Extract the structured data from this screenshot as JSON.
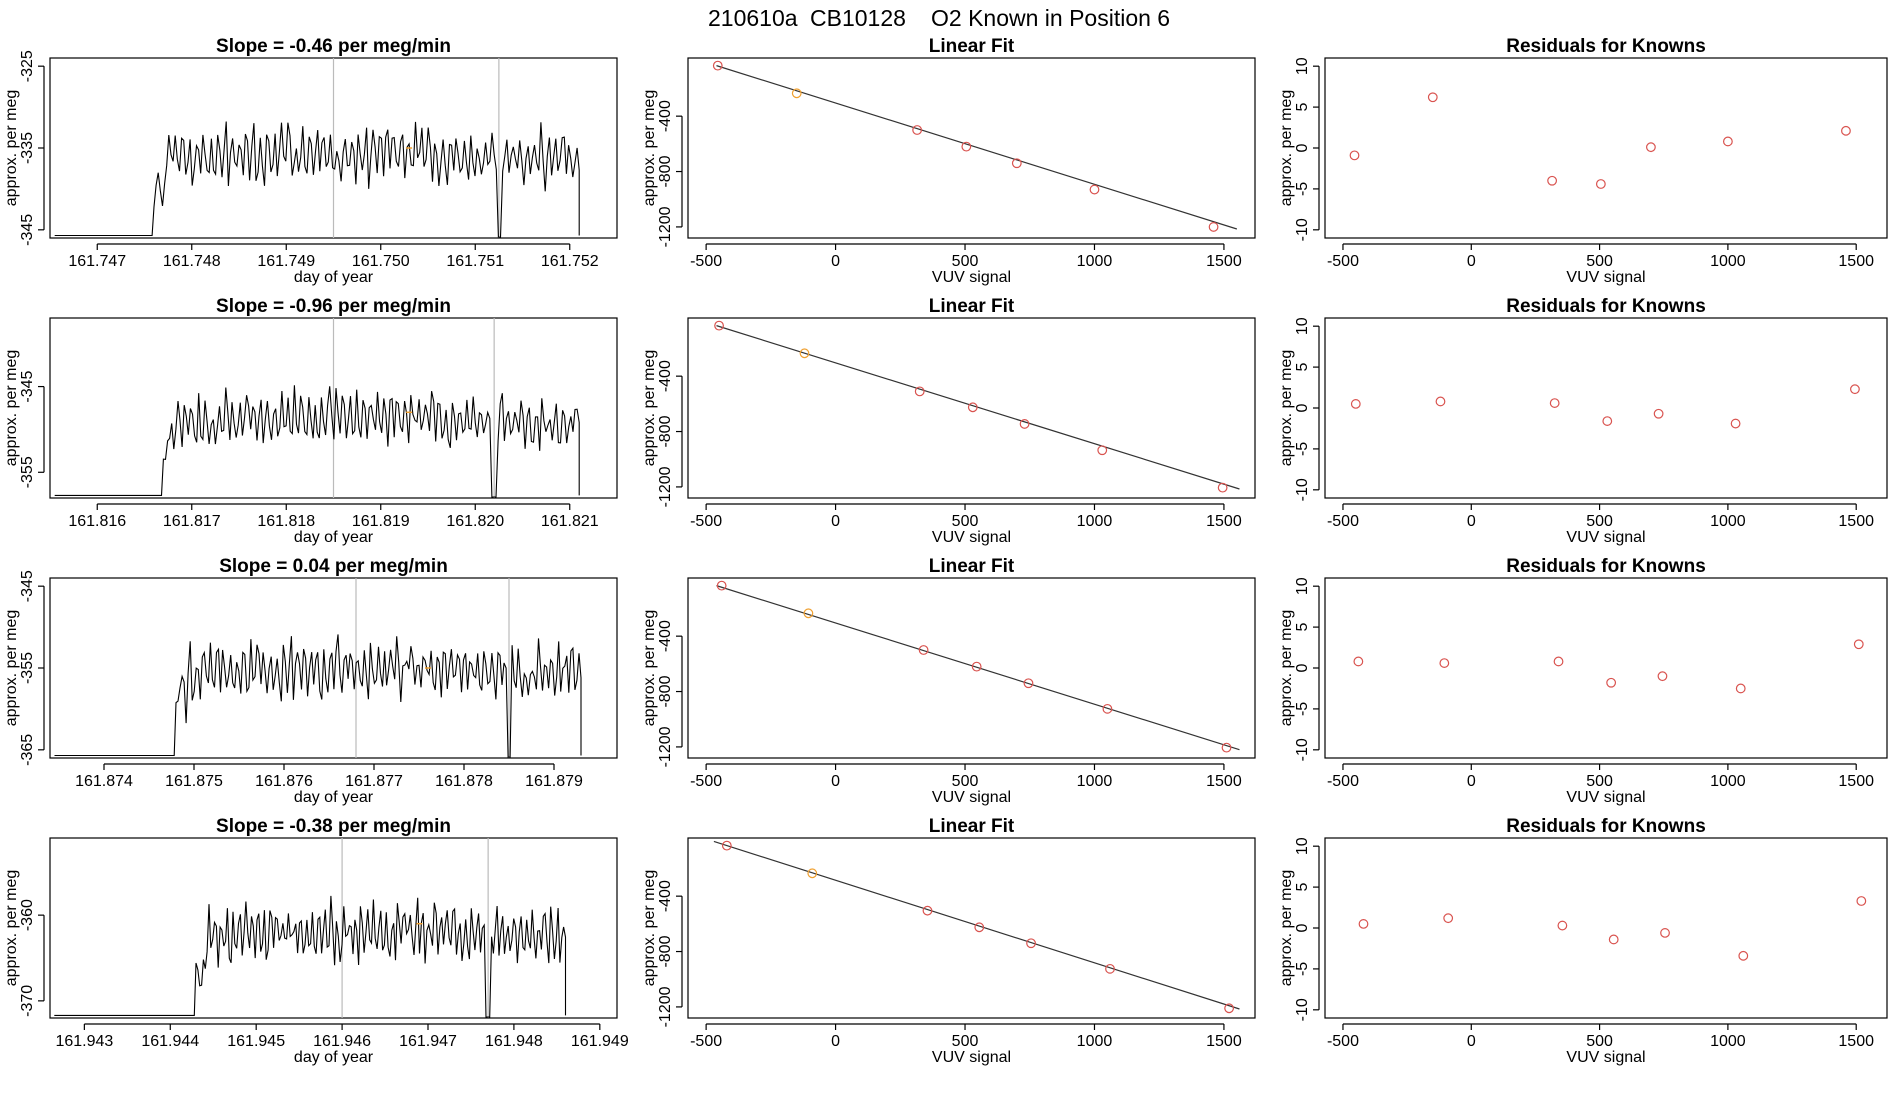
{
  "figure": {
    "title_run": "210610a",
    "title_id": "CB10128",
    "title_desc": "O2 Known in Position  6"
  },
  "colors": {
    "series_line": "#000000",
    "marker_red": "#d9534f",
    "marker_orange": "#f0a030",
    "vertical_lines": "#bbbbbb",
    "fit_line": "#333333"
  },
  "chart_data": [
    {
      "row": 1,
      "timeseries": {
        "type": "line",
        "title": "Slope =  -0.46  per meg/min",
        "xlabel": "day of year",
        "ylabel": "approx. per meg",
        "xlim": [
          161.7465,
          161.7525
        ],
        "ylim": [
          -346,
          -324
        ],
        "xticks": [
          161.747,
          161.748,
          161.749,
          161.75,
          161.751,
          161.752
        ],
        "xtick_labels": [
          "161.747",
          "161.748",
          "161.749",
          "161.750",
          "161.751",
          "161.752"
        ],
        "yticks": [
          -325,
          -335,
          -345
        ],
        "ytick_labels": [
          "-325",
          "-335",
          "-345"
        ],
        "start": 161.7476,
        "end": 161.7521,
        "base": -336.5,
        "trend": 0.8,
        "amp": 3.2,
        "seed": 11,
        "vlines": [
          161.7495,
          161.75125
        ],
        "marker": {
          "x": 161.7503,
          "y": -335
        }
      },
      "fit": {
        "type": "scatter",
        "title": "Linear Fit",
        "xlabel": "VUV signal",
        "ylabel": "approx. per meg",
        "xlim": [
          -570,
          1620
        ],
        "ylim": [
          -1280,
          20
        ],
        "xticks": [
          -500,
          0,
          500,
          1000,
          1500
        ],
        "xtick_labels": [
          "-500",
          "0",
          "500",
          "1000",
          "1500"
        ],
        "yticks": [
          -400,
          -800,
          -1200
        ],
        "ytick_labels": [
          "-400",
          "-800",
          "-1200"
        ],
        "line": {
          "x0": -460,
          "y0": -35,
          "x1": 1550,
          "y1": -1215
        },
        "points": [
          {
            "x": -455,
            "y": -35,
            "color": "red"
          },
          {
            "x": -150,
            "y": -235,
            "color": "orange"
          },
          {
            "x": 315,
            "y": -500,
            "color": "red"
          },
          {
            "x": 505,
            "y": -620,
            "color": "red"
          },
          {
            "x": 700,
            "y": -740,
            "color": "red"
          },
          {
            "x": 1000,
            "y": -930,
            "color": "red"
          },
          {
            "x": 1460,
            "y": -1200,
            "color": "red"
          }
        ]
      },
      "residuals": {
        "type": "scatter",
        "title": "Residuals for Knowns",
        "xlabel": "VUV signal",
        "ylabel": "approx. per meg",
        "xlim": [
          -570,
          1620
        ],
        "ylim": [
          -11,
          11
        ],
        "xticks": [
          -500,
          0,
          500,
          1000,
          1500
        ],
        "xtick_labels": [
          "-500",
          "0",
          "500",
          "1000",
          "1500"
        ],
        "yticks": [
          10,
          5,
          0,
          -5,
          -10
        ],
        "ytick_labels": [
          "10",
          "5",
          "0",
          "-5",
          "-10"
        ],
        "points": [
          {
            "x": -455,
            "y": -0.9
          },
          {
            "x": -150,
            "y": 6.2
          },
          {
            "x": 315,
            "y": -4.0
          },
          {
            "x": 505,
            "y": -4.4
          },
          {
            "x": 700,
            "y": 0.1
          },
          {
            "x": 1000,
            "y": 0.8
          },
          {
            "x": 1460,
            "y": 2.1
          }
        ]
      }
    },
    {
      "row": 2,
      "timeseries": {
        "type": "line",
        "title": "Slope =  -0.96  per meg/min",
        "xlabel": "day of year",
        "ylabel": "approx. per meg",
        "xlim": [
          161.8155,
          161.8215
        ],
        "ylim": [
          -358,
          -337
        ],
        "xticks": [
          161.816,
          161.817,
          161.818,
          161.819,
          161.82,
          161.821
        ],
        "xtick_labels": [
          "161.816",
          "161.817",
          "161.818",
          "161.819",
          "161.820",
          "161.821"
        ],
        "yticks": [
          -345,
          -355
        ],
        "ytick_labels": [
          "-345",
          "-355"
        ],
        "start": 161.8167,
        "end": 161.8211,
        "base": -349.5,
        "trend": 1.0,
        "amp": 2.8,
        "seed": 23,
        "vlines": [
          161.8185,
          161.8202
        ],
        "marker": {
          "x": 161.8193,
          "y": -348
        }
      },
      "fit": {
        "type": "scatter",
        "title": "Linear Fit",
        "xlabel": "VUV signal",
        "ylabel": "approx. per meg",
        "xlim": [
          -570,
          1620
        ],
        "ylim": [
          -1280,
          20
        ],
        "xticks": [
          -500,
          0,
          500,
          1000,
          1500
        ],
        "xtick_labels": [
          "-500",
          "0",
          "500",
          "1000",
          "1500"
        ],
        "yticks": [
          -400,
          -800,
          -1200
        ],
        "ytick_labels": [
          "-400",
          "-800",
          "-1200"
        ],
        "line": {
          "x0": -460,
          "y0": -35,
          "x1": 1560,
          "y1": -1215
        },
        "points": [
          {
            "x": -450,
            "y": -35,
            "color": "red"
          },
          {
            "x": -120,
            "y": -235,
            "color": "orange"
          },
          {
            "x": 325,
            "y": -510,
            "color": "red"
          },
          {
            "x": 530,
            "y": -625,
            "color": "red"
          },
          {
            "x": 730,
            "y": -745,
            "color": "red"
          },
          {
            "x": 1030,
            "y": -935,
            "color": "red"
          },
          {
            "x": 1495,
            "y": -1205,
            "color": "red"
          }
        ]
      },
      "residuals": {
        "type": "scatter",
        "title": "Residuals for Knowns",
        "xlabel": "VUV signal",
        "ylabel": "approx. per meg",
        "xlim": [
          -570,
          1620
        ],
        "ylim": [
          -11,
          11
        ],
        "xticks": [
          -500,
          0,
          500,
          1000,
          1500
        ],
        "xtick_labels": [
          "-500",
          "0",
          "500",
          "1000",
          "1500"
        ],
        "yticks": [
          10,
          5,
          0,
          -5,
          -10
        ],
        "ytick_labels": [
          "10",
          "5",
          "0",
          "-5",
          "-10"
        ],
        "points": [
          {
            "x": -450,
            "y": 0.5
          },
          {
            "x": -120,
            "y": 0.8
          },
          {
            "x": 325,
            "y": 0.6
          },
          {
            "x": 530,
            "y": -1.6
          },
          {
            "x": 730,
            "y": -0.7
          },
          {
            "x": 1030,
            "y": -1.9
          },
          {
            "x": 1495,
            "y": 2.3
          }
        ]
      }
    },
    {
      "row": 3,
      "timeseries": {
        "type": "line",
        "title": "Slope =  0.04  per meg/min",
        "xlabel": "day of year",
        "ylabel": "approx. per meg",
        "xlim": [
          161.8734,
          161.8797
        ],
        "ylim": [
          -366,
          -344
        ],
        "xticks": [
          161.874,
          161.875,
          161.876,
          161.877,
          161.878,
          161.879
        ],
        "xtick_labels": [
          "161.874",
          "161.875",
          "161.876",
          "161.877",
          "161.878",
          "161.879"
        ],
        "yticks": [
          -345,
          -355,
          -365
        ],
        "ytick_labels": [
          "-345",
          "-355",
          "-365"
        ],
        "start": 161.8748,
        "end": 161.8793,
        "base": -355.5,
        "trend": 0.4,
        "amp": 3.2,
        "seed": 37,
        "vlines": [
          161.8768,
          161.8785
        ],
        "marker": {
          "x": 161.8776,
          "y": -355
        }
      },
      "fit": {
        "type": "scatter",
        "title": "Linear Fit",
        "xlabel": "VUV signal",
        "ylabel": "approx. per meg",
        "xlim": [
          -570,
          1620
        ],
        "ylim": [
          -1280,
          20
        ],
        "xticks": [
          -500,
          0,
          500,
          1000,
          1500
        ],
        "xtick_labels": [
          "-500",
          "0",
          "500",
          "1000",
          "1500"
        ],
        "yticks": [
          -400,
          -800,
          -1200
        ],
        "ytick_labels": [
          "-400",
          "-800",
          "-1200"
        ],
        "line": {
          "x0": -460,
          "y0": -35,
          "x1": 1560,
          "y1": -1220
        },
        "points": [
          {
            "x": -440,
            "y": -35,
            "color": "red"
          },
          {
            "x": -105,
            "y": -235,
            "color": "orange"
          },
          {
            "x": 340,
            "y": -500,
            "color": "red"
          },
          {
            "x": 545,
            "y": -620,
            "color": "red"
          },
          {
            "x": 745,
            "y": -740,
            "color": "red"
          },
          {
            "x": 1050,
            "y": -925,
            "color": "red"
          },
          {
            "x": 1510,
            "y": -1205,
            "color": "red"
          }
        ]
      },
      "residuals": {
        "type": "scatter",
        "title": "Residuals for Knowns",
        "xlabel": "VUV signal",
        "ylabel": "approx. per meg",
        "xlim": [
          -570,
          1620
        ],
        "ylim": [
          -11,
          11
        ],
        "xticks": [
          -500,
          0,
          500,
          1000,
          1500
        ],
        "xtick_labels": [
          "-500",
          "0",
          "500",
          "1000",
          "1500"
        ],
        "yticks": [
          10,
          5,
          0,
          -5,
          -10
        ],
        "ytick_labels": [
          "10",
          "5",
          "0",
          "-5",
          "-10"
        ],
        "points": [
          {
            "x": -440,
            "y": 0.8
          },
          {
            "x": -105,
            "y": 0.6
          },
          {
            "x": 340,
            "y": 0.8
          },
          {
            "x": 545,
            "y": -1.8
          },
          {
            "x": 745,
            "y": -1.0
          },
          {
            "x": 1050,
            "y": -2.5
          },
          {
            "x": 1510,
            "y": 2.9
          }
        ]
      }
    },
    {
      "row": 4,
      "timeseries": {
        "type": "line",
        "title": "Slope =  -0.38  per meg/min",
        "xlabel": "day of year",
        "ylabel": "approx. per meg",
        "xlim": [
          161.9426,
          161.9492
        ],
        "ylim": [
          -372,
          -351
        ],
        "xticks": [
          161.943,
          161.944,
          161.945,
          161.946,
          161.947,
          161.948,
          161.949
        ],
        "xtick_labels": [
          "161.943",
          "161.944",
          "161.945",
          "161.946",
          "161.947",
          "161.948",
          "161.949"
        ],
        "yticks": [
          -360,
          -370
        ],
        "ytick_labels": [
          "-360",
          "-370"
        ],
        "start": 161.9443,
        "end": 161.9486,
        "base": -362.5,
        "trend": 0.6,
        "amp": 3.0,
        "seed": 53,
        "vlines": [
          161.946,
          161.9477
        ],
        "marker": {
          "x": 161.9469,
          "y": -361
        }
      },
      "fit": {
        "type": "scatter",
        "title": "Linear Fit",
        "xlabel": "VUV signal",
        "ylabel": "approx. per meg",
        "xlim": [
          -570,
          1620
        ],
        "ylim": [
          -1280,
          20
        ],
        "xticks": [
          -500,
          0,
          500,
          1000,
          1500
        ],
        "xtick_labels": [
          "-500",
          "0",
          "500",
          "1000",
          "1500"
        ],
        "yticks": [
          -400,
          -800,
          -1200
        ],
        "ytick_labels": [
          "-400",
          "-800",
          "-1200"
        ],
        "line": {
          "x0": -470,
          "y0": -5,
          "x1": 1560,
          "y1": -1215
        },
        "points": [
          {
            "x": -420,
            "y": -35,
            "color": "red"
          },
          {
            "x": -90,
            "y": -235,
            "color": "orange"
          },
          {
            "x": 355,
            "y": -505,
            "color": "red"
          },
          {
            "x": 555,
            "y": -625,
            "color": "red"
          },
          {
            "x": 755,
            "y": -740,
            "color": "red"
          },
          {
            "x": 1060,
            "y": -925,
            "color": "red"
          },
          {
            "x": 1520,
            "y": -1210,
            "color": "red"
          }
        ]
      },
      "residuals": {
        "type": "scatter",
        "title": "Residuals for Knowns",
        "xlabel": "VUV signal",
        "ylabel": "approx. per meg",
        "xlim": [
          -570,
          1620
        ],
        "ylim": [
          -11,
          11
        ],
        "xticks": [
          -500,
          0,
          500,
          1000,
          1500
        ],
        "xtick_labels": [
          "-500",
          "0",
          "500",
          "1000",
          "1500"
        ],
        "yticks": [
          10,
          5,
          0,
          -5,
          -10
        ],
        "ytick_labels": [
          "10",
          "5",
          "0",
          "-5",
          "-10"
        ],
        "points": [
          {
            "x": -420,
            "y": 0.5
          },
          {
            "x": -90,
            "y": 1.2
          },
          {
            "x": 355,
            "y": 0.3
          },
          {
            "x": 555,
            "y": -1.4
          },
          {
            "x": 755,
            "y": -0.6
          },
          {
            "x": 1060,
            "y": -3.4
          },
          {
            "x": 1520,
            "y": 3.3
          }
        ]
      }
    }
  ]
}
